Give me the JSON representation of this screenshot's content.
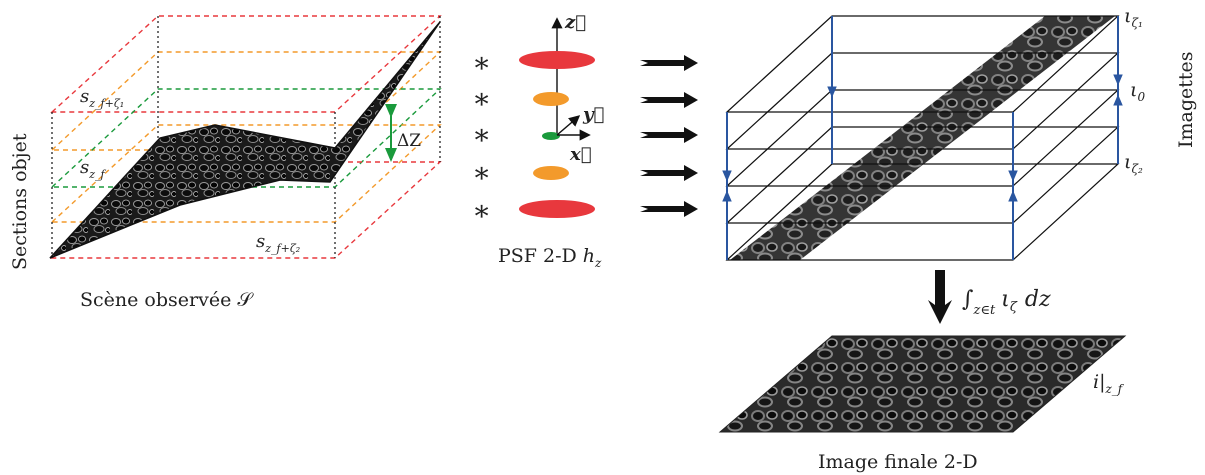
{
  "scene": {
    "caption": "Scène observée 𝒮",
    "side_label": "Sections objet",
    "section_top_label": "s",
    "section_top_sub": "z_f+ζ₁",
    "section_mid_label": "s",
    "section_mid_sub": "z_f",
    "section_bot_label": "s",
    "section_bot_sub": "z_f+ζ₂",
    "delta_label": "ΔZ"
  },
  "psf": {
    "caption": "PSF 2-D",
    "caption_var": "h",
    "caption_sub": "z",
    "axis_z": "z⃗",
    "axis_y": "y⃗",
    "axis_x": "x⃗",
    "convolution_symbol": "∗"
  },
  "stack": {
    "side_label": "Imagettes",
    "iota_top": "ι",
    "iota_top_sub": "ζ₁",
    "iota_mid": "ι",
    "iota_mid_sub": "0",
    "iota_bot": "ι",
    "iota_bot_sub": "ζ₂"
  },
  "integration": {
    "formula_int": "∫",
    "formula_sub": "z∈t",
    "formula_body": "ι",
    "formula_body_sub": "ζ",
    "formula_tail": "dz"
  },
  "final": {
    "caption": "Image finale 2-D",
    "label": "i|",
    "label_sub": "z_f"
  },
  "colors": {
    "red": "#e8383d",
    "orange": "#f39a2b",
    "green": "#1a9a3c",
    "blue": "#2a56a0",
    "black": "#111111"
  }
}
